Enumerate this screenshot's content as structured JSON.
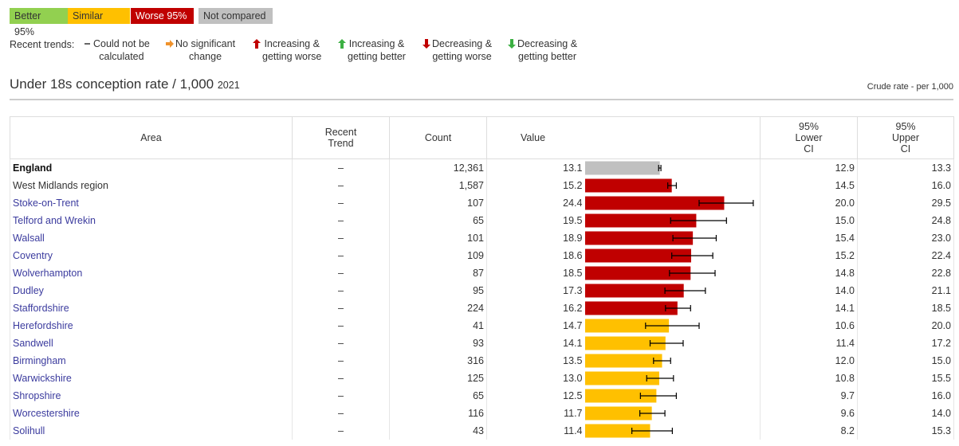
{
  "legend": {
    "significance": [
      {
        "label": "Better 95%",
        "color": "#92d050",
        "text_color": "#333333"
      },
      {
        "label": "Similar",
        "color": "#ffc000",
        "text_color": "#333333"
      },
      {
        "label": "Worse 95%",
        "color": "#c00000",
        "text_color": "#ffffff"
      },
      {
        "label": "Not compared",
        "color": "#c0c0c0",
        "text_color": "#333333"
      }
    ],
    "trends_label": "Recent trends:",
    "trends": [
      {
        "lines": [
          "Could not be",
          "calculated"
        ]
      },
      {
        "lines": [
          "No significant",
          "change"
        ]
      },
      {
        "lines": [
          "Increasing &",
          "getting worse"
        ]
      },
      {
        "lines": [
          "Increasing &",
          "getting better"
        ]
      },
      {
        "lines": [
          "Decreasing &",
          "getting worse"
        ]
      },
      {
        "lines": [
          "Decreasing &",
          "getting better"
        ]
      }
    ]
  },
  "header": {
    "title": "Under 18s conception rate / 1,000",
    "year": "2021",
    "note": "Crude rate - per 1,000"
  },
  "table": {
    "columns": [
      "Area",
      "Recent Trend",
      "Count",
      "Value",
      "95% Lower CI",
      "95% Upper CI"
    ],
    "rows": [
      {
        "area": "England",
        "trend": "–",
        "count": "12,361",
        "value": "13.1",
        "lower": "12.9",
        "upper": "13.3",
        "color": "#c0c0c0"
      },
      {
        "area": "West Midlands region",
        "trend": "–",
        "count": "1,587",
        "value": "15.2",
        "lower": "14.5",
        "upper": "16.0",
        "color": "#c00000"
      },
      {
        "area": "Stoke-on-Trent",
        "trend": "–",
        "count": "107",
        "value": "24.4",
        "lower": "20.0",
        "upper": "29.5",
        "color": "#c00000"
      },
      {
        "area": "Telford and Wrekin",
        "trend": "–",
        "count": "65",
        "value": "19.5",
        "lower": "15.0",
        "upper": "24.8",
        "color": "#c00000"
      },
      {
        "area": "Walsall",
        "trend": "–",
        "count": "101",
        "value": "18.9",
        "lower": "15.4",
        "upper": "23.0",
        "color": "#c00000"
      },
      {
        "area": "Coventry",
        "trend": "–",
        "count": "109",
        "value": "18.6",
        "lower": "15.2",
        "upper": "22.4",
        "color": "#c00000"
      },
      {
        "area": "Wolverhampton",
        "trend": "–",
        "count": "87",
        "value": "18.5",
        "lower": "14.8",
        "upper": "22.8",
        "color": "#c00000"
      },
      {
        "area": "Dudley",
        "trend": "–",
        "count": "95",
        "value": "17.3",
        "lower": "14.0",
        "upper": "21.1",
        "color": "#c00000"
      },
      {
        "area": "Staffordshire",
        "trend": "–",
        "count": "224",
        "value": "16.2",
        "lower": "14.1",
        "upper": "18.5",
        "color": "#c00000"
      },
      {
        "area": "Herefordshire",
        "trend": "–",
        "count": "41",
        "value": "14.7",
        "lower": "10.6",
        "upper": "20.0",
        "color": "#ffc000"
      },
      {
        "area": "Sandwell",
        "trend": "–",
        "count": "93",
        "value": "14.1",
        "lower": "11.4",
        "upper": "17.2",
        "color": "#ffc000"
      },
      {
        "area": "Birmingham",
        "trend": "–",
        "count": "316",
        "value": "13.5",
        "lower": "12.0",
        "upper": "15.0",
        "color": "#ffc000"
      },
      {
        "area": "Warwickshire",
        "trend": "–",
        "count": "125",
        "value": "13.0",
        "lower": "10.8",
        "upper": "15.5",
        "color": "#ffc000"
      },
      {
        "area": "Shropshire",
        "trend": "–",
        "count": "65",
        "value": "12.5",
        "lower": "9.7",
        "upper": "16.0",
        "color": "#ffc000"
      },
      {
        "area": "Worcestershire",
        "trend": "–",
        "count": "116",
        "value": "11.7",
        "lower": "9.6",
        "upper": "14.0",
        "color": "#ffc000"
      },
      {
        "area": "Solihull",
        "trend": "–",
        "count": "43",
        "value": "11.4",
        "lower": "8.2",
        "upper": "15.3",
        "color": "#ffc000"
      }
    ]
  }
}
